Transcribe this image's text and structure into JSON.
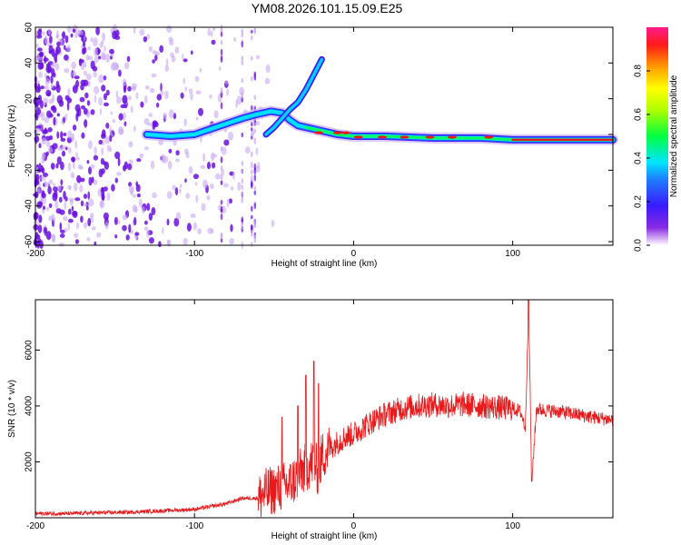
{
  "title": "YM08.2026.101.15.09.E25",
  "colors": {
    "line": "#e8191b",
    "frame": "#000000",
    "dot_dark": "#6a10e0",
    "dot_light": "#c8a8f2",
    "ridge_mid": "#1a6bff",
    "ridge_hot": "#e8191b"
  },
  "chart_data": [
    {
      "type": "heatmap",
      "name": "spectrogram",
      "xlabel": "Height of straight line (km)",
      "ylabel": "Frequency (Hz)",
      "xlim": [
        -200,
        163
      ],
      "ylim": [
        -62,
        60
      ],
      "xticks": [
        -200,
        -100,
        0,
        100
      ],
      "xticklabels": [
        "-200",
        "-100",
        "0",
        "100"
      ],
      "yticks": [
        60,
        40,
        20,
        0,
        -20,
        -40,
        -60
      ],
      "yticklabels": [
        "60",
        "40",
        "20",
        "0",
        "-20",
        "-40",
        "-60"
      ],
      "colorbar": {
        "label": "Normalized spectral amplitude",
        "range": [
          0.0,
          1.0
        ],
        "ticks": [
          0.0,
          0.2,
          0.4,
          0.6,
          0.8
        ],
        "ticklabels": [
          "0.0",
          "0.2",
          "0.4",
          "0.6",
          "0.8"
        ]
      },
      "ridge_points": [
        [
          -130,
          0
        ],
        [
          -115,
          -1
        ],
        [
          -100,
          0
        ],
        [
          -90,
          3
        ],
        [
          -80,
          6
        ],
        [
          -70,
          9
        ],
        [
          -62,
          11
        ],
        [
          -52,
          13
        ],
        [
          -45,
          12
        ],
        [
          -40,
          8
        ],
        [
          -35,
          5
        ],
        [
          -30,
          4
        ],
        [
          -20,
          2
        ],
        [
          -10,
          0
        ],
        [
          0,
          -1
        ],
        [
          20,
          -1
        ],
        [
          50,
          -2
        ],
        [
          80,
          -2
        ],
        [
          100,
          -3
        ],
        [
          130,
          -3
        ],
        [
          163,
          -3
        ]
      ],
      "secondary_branch": [
        [
          -55,
          0
        ],
        [
          -50,
          4
        ],
        [
          -45,
          9
        ],
        [
          -40,
          14
        ],
        [
          -35,
          18
        ],
        [
          -30,
          25
        ],
        [
          -27,
          30
        ],
        [
          -20,
          42
        ]
      ]
    },
    {
      "type": "line",
      "name": "snr",
      "xlabel": "Height of straight line (km)",
      "ylabel": "SNR (10 * v/v)",
      "xlim": [
        -200,
        163
      ],
      "ylim": [
        0,
        7800
      ],
      "xticks": [
        -200,
        -100,
        0,
        100
      ],
      "xticklabels": [
        "-200",
        "-100",
        "0",
        "100"
      ],
      "yticks": [
        2000,
        4000,
        6000
      ],
      "yticklabels": [
        "2000",
        "4000",
        "6000"
      ],
      "x": [
        -200,
        -180,
        -160,
        -140,
        -120,
        -100,
        -90,
        -80,
        -70,
        -60,
        -55,
        -50,
        -45,
        -40,
        -35,
        -30,
        -25,
        -22,
        -20,
        -15,
        -10,
        -5,
        0,
        10,
        20,
        30,
        40,
        50,
        60,
        70,
        80,
        90,
        100,
        105,
        108,
        110,
        112,
        115,
        120,
        130,
        140,
        150,
        163
      ],
      "values": [
        150,
        150,
        180,
        200,
        250,
        300,
        400,
        500,
        700,
        700,
        900,
        1000,
        1100,
        1200,
        1500,
        1800,
        2000,
        1600,
        2200,
        2500,
        2700,
        2900,
        3000,
        3400,
        3700,
        3900,
        4000,
        4050,
        4000,
        4050,
        4000,
        3950,
        3900,
        3800,
        3200,
        7800,
        1300,
        3900,
        3850,
        3800,
        3700,
        3600,
        3500
      ],
      "spikes": [
        [
          -45,
          3600
        ],
        [
          -35,
          4000
        ],
        [
          -30,
          5100
        ],
        [
          -25,
          5600
        ],
        [
          -22,
          4800
        ],
        [
          110,
          7800
        ],
        [
          112,
          1300
        ]
      ]
    }
  ]
}
